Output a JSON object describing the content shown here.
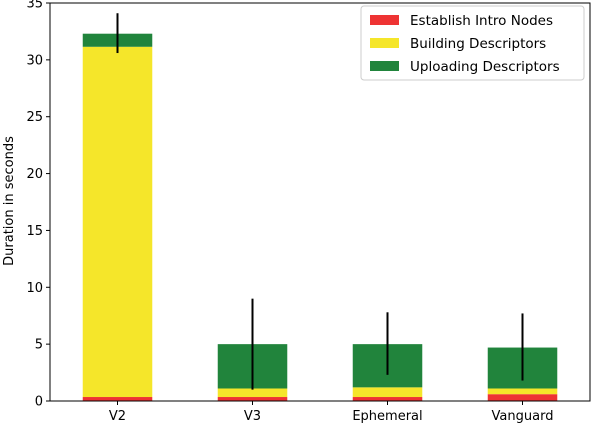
{
  "chart_data": {
    "type": "bar",
    "stacked": true,
    "title": "",
    "xlabel": "",
    "ylabel": "Duration in seconds",
    "ylim": [
      0,
      35
    ],
    "yticks": [
      0,
      5,
      10,
      15,
      20,
      25,
      30,
      35
    ],
    "grid": false,
    "legend_position": "top-right",
    "categories": [
      "V2",
      "V3",
      "Ephemeral",
      "Vanguard"
    ],
    "series": [
      {
        "name": "Establish Intro Nodes",
        "color": "#ee3333",
        "values": [
          0.35,
          0.35,
          0.35,
          0.6
        ]
      },
      {
        "name": "Building Descriptors",
        "color": "#f5e62a",
        "values": [
          30.8,
          0.75,
          0.85,
          0.5
        ]
      },
      {
        "name": "Uploading Descriptors",
        "color": "#21843c",
        "values": [
          1.15,
          3.9,
          3.8,
          3.6
        ]
      }
    ],
    "error_bars": [
      {
        "category": "V2",
        "low": 30.6,
        "high": 34.1
      },
      {
        "category": "V3",
        "low": 1.0,
        "high": 9.0
      },
      {
        "category": "Ephemeral",
        "low": 2.3,
        "high": 7.8
      },
      {
        "category": "Vanguard",
        "low": 1.8,
        "high": 7.7
      }
    ]
  }
}
